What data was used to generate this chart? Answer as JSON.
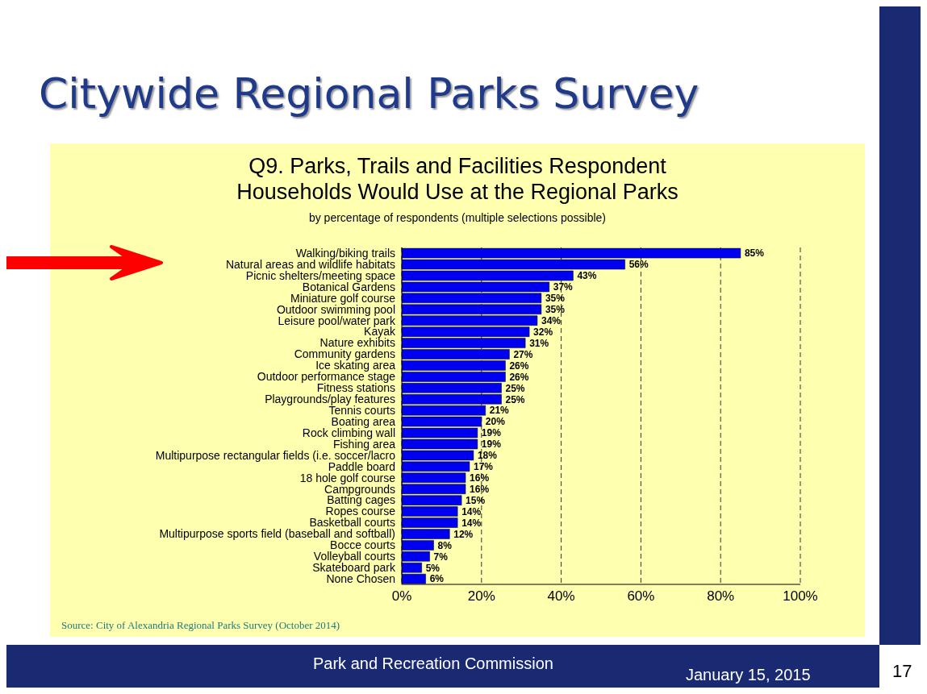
{
  "chart_data": {
    "type": "bar",
    "orientation": "horizontal",
    "title": "Q9. Parks, Trails and Facilities Respondent\nHouseholds Would Use at the Regional Parks",
    "subtitle": "by percentage of respondents (multiple selections possible)",
    "annotations": [
      "Citywide Regional Parks Survey",
      "Source:  City of Alexandria Regional Parks Survey (October 2014)",
      "Park and Recreation Commission",
      "January 15, 2015",
      "17"
    ],
    "categories": [
      "Walking/biking trails",
      "Natural areas and wildlife habitats",
      "Picnic shelters/meeting space",
      "Botanical Gardens",
      "Miniature golf course",
      "Outdoor swimming pool",
      "Leisure pool/water park",
      "Kayak",
      "Nature exhibits",
      "Community gardens",
      "Ice skating area",
      "Outdoor performance stage",
      "Fitness stations",
      "Playgrounds/play features",
      "Tennis courts",
      "Boating area",
      "Rock climbing wall",
      "Fishing area",
      "Multipurpose rectangular fields (i.e. soccer/lacro",
      "Paddle board",
      "18 hole golf course",
      "Campgrounds",
      "Batting cages",
      "Ropes course",
      "Basketball courts",
      "Multipurpose sports field (baseball and softball)",
      "Bocce courts",
      "Volleyball courts",
      "Skateboard park",
      "None Chosen"
    ],
    "values": [
      85,
      56,
      43,
      37,
      35,
      35,
      34,
      32,
      31,
      27,
      26,
      26,
      25,
      25,
      21,
      20,
      19,
      19,
      18,
      17,
      16,
      16,
      15,
      14,
      14,
      12,
      8,
      7,
      5,
      6
    ],
    "value_labels": [
      "85%",
      "56%",
      "43%",
      "37%",
      "35%",
      "35%",
      "34%",
      "32%",
      "31%",
      "27%",
      "26%",
      "26%",
      "25%",
      "25%",
      "21%",
      "20%",
      "19%",
      "19%",
      "18%",
      "17%",
      "16%",
      "16%",
      "15%",
      "14%",
      "14%",
      "12%",
      "8%",
      "7%",
      "5%",
      "6%"
    ],
    "color": "#0000f0",
    "xlim": [
      0,
      100
    ],
    "xticks": [
      {
        "value": 0,
        "label": "0%"
      },
      {
        "value": 20,
        "label": "20%"
      },
      {
        "value": 40,
        "label": "40%"
      },
      {
        "value": 60,
        "label": "60%"
      },
      {
        "value": 80,
        "label": "80%"
      },
      {
        "value": 100,
        "label": "100%"
      }
    ],
    "grid": "x",
    "line_style": "dashed"
  }
}
